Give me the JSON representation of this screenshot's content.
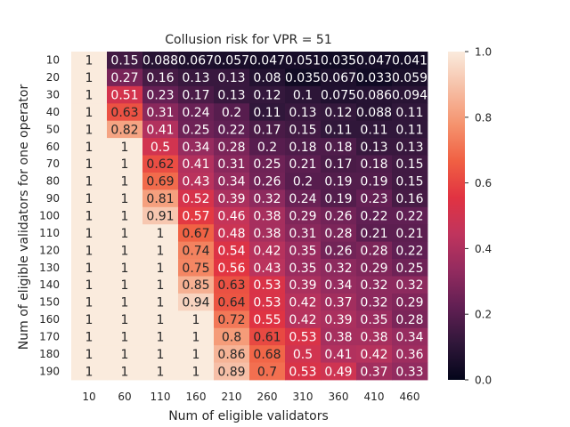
{
  "chart_data": {
    "type": "heatmap",
    "title": "Collusion risk for VPR = 51",
    "xlabel": "Num of eligible validators",
    "ylabel": "Num of eligible validators for one operator",
    "x_categories": [
      "10",
      "60",
      "110",
      "160",
      "210",
      "260",
      "310",
      "360",
      "410",
      "460"
    ],
    "y_categories": [
      "10",
      "20",
      "30",
      "40",
      "50",
      "60",
      "70",
      "80",
      "90",
      "100",
      "110",
      "120",
      "130",
      "140",
      "150",
      "160",
      "170",
      "180",
      "190"
    ],
    "values": [
      [
        1,
        0.15,
        0.088,
        0.067,
        0.057,
        0.047,
        0.051,
        0.035,
        0.047,
        0.041
      ],
      [
        1,
        0.27,
        0.16,
        0.13,
        0.13,
        0.08,
        0.035,
        0.067,
        0.033,
        0.059
      ],
      [
        1,
        0.51,
        0.23,
        0.17,
        0.13,
        0.12,
        0.1,
        0.075,
        0.086,
        0.094
      ],
      [
        1,
        0.63,
        0.31,
        0.24,
        0.2,
        0.11,
        0.13,
        0.12,
        0.088,
        0.11
      ],
      [
        1,
        0.82,
        0.41,
        0.25,
        0.22,
        0.17,
        0.15,
        0.11,
        0.11,
        0.11
      ],
      [
        1,
        1,
        0.5,
        0.34,
        0.28,
        0.2,
        0.18,
        0.18,
        0.13,
        0.13
      ],
      [
        1,
        1,
        0.62,
        0.41,
        0.31,
        0.25,
        0.21,
        0.17,
        0.18,
        0.15
      ],
      [
        1,
        1,
        0.69,
        0.43,
        0.34,
        0.26,
        0.2,
        0.19,
        0.19,
        0.15
      ],
      [
        1,
        1,
        0.81,
        0.52,
        0.39,
        0.32,
        0.24,
        0.19,
        0.23,
        0.16
      ],
      [
        1,
        1,
        0.91,
        0.57,
        0.46,
        0.38,
        0.29,
        0.26,
        0.22,
        0.22
      ],
      [
        1,
        1,
        1,
        0.67,
        0.48,
        0.38,
        0.31,
        0.28,
        0.21,
        0.21
      ],
      [
        1,
        1,
        1,
        0.74,
        0.54,
        0.42,
        0.35,
        0.26,
        0.28,
        0.22
      ],
      [
        1,
        1,
        1,
        0.75,
        0.56,
        0.43,
        0.35,
        0.32,
        0.29,
        0.25
      ],
      [
        1,
        1,
        1,
        0.85,
        0.63,
        0.53,
        0.39,
        0.34,
        0.32,
        0.32
      ],
      [
        1,
        1,
        1,
        0.94,
        0.64,
        0.53,
        0.42,
        0.37,
        0.32,
        0.29
      ],
      [
        1,
        1,
        1,
        1,
        0.72,
        0.55,
        0.42,
        0.39,
        0.35,
        0.28
      ],
      [
        1,
        1,
        1,
        1,
        0.8,
        0.61,
        0.53,
        0.38,
        0.38,
        0.34
      ],
      [
        1,
        1,
        1,
        1,
        0.86,
        0.68,
        0.5,
        0.41,
        0.42,
        0.36
      ],
      [
        1,
        1,
        1,
        1,
        0.89,
        0.7,
        0.53,
        0.49,
        0.37,
        0.33
      ]
    ],
    "value_labels": [
      [
        "1",
        "0.15",
        "0.088",
        "0.067",
        "0.057",
        "0.047",
        "0.051",
        "0.035",
        "0.047",
        "0.041"
      ],
      [
        "1",
        "0.27",
        "0.16",
        "0.13",
        "0.13",
        "0.08",
        "0.035",
        "0.067",
        "0.033",
        "0.059"
      ],
      [
        "1",
        "0.51",
        "0.23",
        "0.17",
        "0.13",
        "0.12",
        "0.1",
        "0.075",
        "0.086",
        "0.094"
      ],
      [
        "1",
        "0.63",
        "0.31",
        "0.24",
        "0.2",
        "0.11",
        "0.13",
        "0.12",
        "0.088",
        "0.11"
      ],
      [
        "1",
        "0.82",
        "0.41",
        "0.25",
        "0.22",
        "0.17",
        "0.15",
        "0.11",
        "0.11",
        "0.11"
      ],
      [
        "1",
        "1",
        "0.5",
        "0.34",
        "0.28",
        "0.2",
        "0.18",
        "0.18",
        "0.13",
        "0.13"
      ],
      [
        "1",
        "1",
        "0.62",
        "0.41",
        "0.31",
        "0.25",
        "0.21",
        "0.17",
        "0.18",
        "0.15"
      ],
      [
        "1",
        "1",
        "0.69",
        "0.43",
        "0.34",
        "0.26",
        "0.2",
        "0.19",
        "0.19",
        "0.15"
      ],
      [
        "1",
        "1",
        "0.81",
        "0.52",
        "0.39",
        "0.32",
        "0.24",
        "0.19",
        "0.23",
        "0.16"
      ],
      [
        "1",
        "1",
        "0.91",
        "0.57",
        "0.46",
        "0.38",
        "0.29",
        "0.26",
        "0.22",
        "0.22"
      ],
      [
        "1",
        "1",
        "1",
        "0.67",
        "0.48",
        "0.38",
        "0.31",
        "0.28",
        "0.21",
        "0.21"
      ],
      [
        "1",
        "1",
        "1",
        "0.74",
        "0.54",
        "0.42",
        "0.35",
        "0.26",
        "0.28",
        "0.22"
      ],
      [
        "1",
        "1",
        "1",
        "0.75",
        "0.56",
        "0.43",
        "0.35",
        "0.32",
        "0.29",
        "0.25"
      ],
      [
        "1",
        "1",
        "1",
        "0.85",
        "0.63",
        "0.53",
        "0.39",
        "0.34",
        "0.32",
        "0.32"
      ],
      [
        "1",
        "1",
        "1",
        "0.94",
        "0.64",
        "0.53",
        "0.42",
        "0.37",
        "0.32",
        "0.29"
      ],
      [
        "1",
        "1",
        "1",
        "1",
        "0.72",
        "0.55",
        "0.42",
        "0.39",
        "0.35",
        "0.28"
      ],
      [
        "1",
        "1",
        "1",
        "1",
        "0.8",
        "0.61",
        "0.53",
        "0.38",
        "0.38",
        "0.34"
      ],
      [
        "1",
        "1",
        "1",
        "1",
        "0.86",
        "0.68",
        "0.5",
        "0.41",
        "0.42",
        "0.36"
      ],
      [
        "1",
        "1",
        "1",
        "1",
        "0.89",
        "0.7",
        "0.53",
        "0.49",
        "0.37",
        "0.33"
      ]
    ],
    "colorbar": {
      "range": [
        0,
        1
      ],
      "ticks": [
        "0.0",
        "0.2",
        "0.4",
        "0.6",
        "0.8",
        "1.0"
      ],
      "colormap": "rocket",
      "stops": [
        "#03051a",
        "#30173a",
        "#611f53",
        "#932b5f",
        "#c0345d",
        "#e13342",
        "#f06043",
        "#f5936e",
        "#f6bfa6",
        "#faebdd"
      ]
    },
    "grid": false
  }
}
